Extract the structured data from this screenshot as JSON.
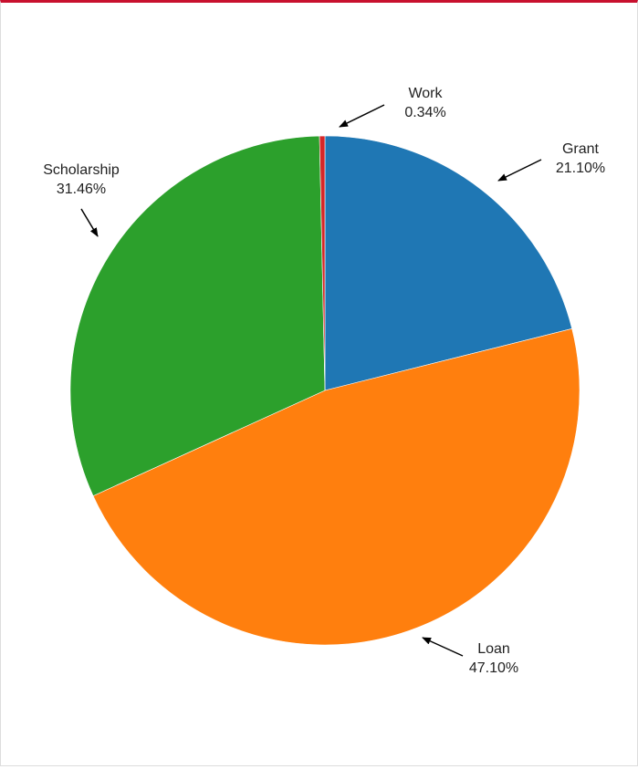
{
  "chart_data": {
    "type": "pie",
    "categories": [
      "Grant",
      "Loan",
      "Scholarship",
      "Work"
    ],
    "values": [
      21.1,
      47.1,
      31.46,
      0.34
    ],
    "labels": [
      "21.10%",
      "47.10%",
      "31.46%",
      "0.34%"
    ],
    "colors": [
      "#1f77b4",
      "#ff7f0e",
      "#2ca02c",
      "#d62728"
    ],
    "start_angle": "12 o'clock",
    "direction": "clockwise",
    "legend": "none"
  }
}
